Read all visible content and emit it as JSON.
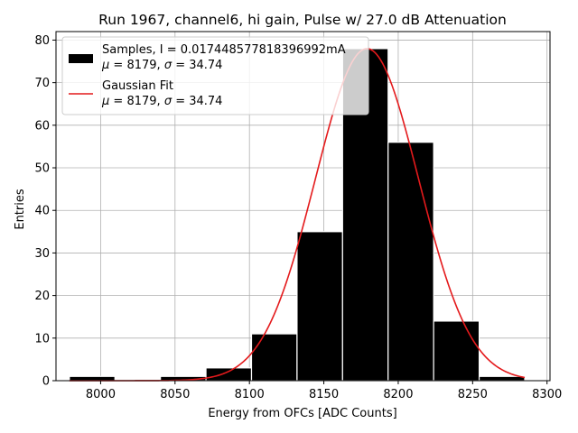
{
  "chart_data": {
    "type": "bar",
    "title": "Run 1967, channel6, hi gain, Pulse w/ 27.0 dB Attenuation",
    "xlabel": "Energy from OFCs [ADC Counts]",
    "ylabel": "Entries",
    "xlim": [
      7970,
      8302
    ],
    "ylim": [
      0,
      82
    ],
    "xticks": [
      8000,
      8050,
      8100,
      8150,
      8200,
      8250,
      8300
    ],
    "yticks": [
      0,
      10,
      20,
      30,
      40,
      50,
      60,
      70,
      80
    ],
    "grid": true,
    "legend_position": "top-left",
    "histogram": {
      "name": "Samples",
      "legend_line1": "Samples, I = 0.017448577818396992mA",
      "legend_mu": "μ",
      "legend_mu_value": "= 8179,",
      "legend_sigma": "σ",
      "legend_sigma_value": "= 34.74",
      "color": "#000000",
      "bin_edges": [
        7979,
        8009.6,
        8040.2,
        8070.8,
        8101.4,
        8132,
        8162.6,
        8193.2,
        8223.8,
        8254.4,
        8285
      ],
      "counts": [
        1,
        0,
        1,
        3,
        11,
        35,
        78,
        56,
        14,
        1
      ]
    },
    "fit": {
      "name": "Gaussian Fit",
      "legend_line1": "Gaussian Fit",
      "legend_mu": "μ",
      "legend_mu_value": "= 8179,",
      "legend_sigma": "σ",
      "legend_sigma_value": "= 34.74",
      "color": "#e41a1c",
      "mu": 8179,
      "sigma": 34.74,
      "amplitude": 78,
      "x_range": [
        7979,
        8285
      ]
    }
  }
}
